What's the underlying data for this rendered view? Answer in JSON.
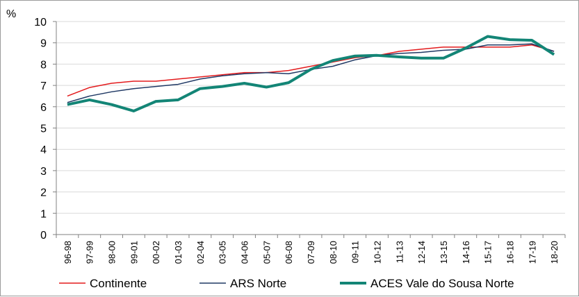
{
  "chart_data": {
    "type": "line",
    "unit_label": "%",
    "ylim": [
      0,
      10
    ],
    "yticks": [
      0,
      1,
      2,
      3,
      4,
      5,
      6,
      7,
      8,
      9,
      10
    ],
    "ytick_labels": [
      "0",
      "1",
      "2",
      "3",
      "4",
      "5",
      "6",
      "7",
      "8",
      "9",
      "10"
    ],
    "grid": "horizontal",
    "legend_position": "bottom",
    "categories": [
      "96-98",
      "97-99",
      "98-00",
      "99-01",
      "00-02",
      "01-03",
      "02-04",
      "03-05",
      "04-06",
      "05-07",
      "06-08",
      "07-09",
      "08-10",
      "09-11",
      "10-12",
      "11-13",
      "12-14",
      "13-15",
      "14-16",
      "15-17",
      "16-18",
      "17-19",
      "18-20"
    ],
    "series": [
      {
        "name": "Continente",
        "color": "#e31a1c",
        "values": [
          6.5,
          6.9,
          7.1,
          7.2,
          7.2,
          7.3,
          7.4,
          7.5,
          7.6,
          7.6,
          7.7,
          7.9,
          8.1,
          8.3,
          8.4,
          8.6,
          8.7,
          8.8,
          8.8,
          8.8,
          8.8,
          8.9,
          8.6
        ]
      },
      {
        "name": "ARS Norte",
        "color": "#1f3864",
        "values": [
          6.2,
          6.5,
          6.7,
          6.85,
          6.95,
          7.05,
          7.3,
          7.45,
          7.55,
          7.6,
          7.55,
          7.75,
          7.9,
          8.2,
          8.4,
          8.5,
          8.55,
          8.65,
          8.7,
          8.9,
          8.9,
          8.95,
          8.6
        ]
      },
      {
        "name": "ACES Vale do Sousa Norte",
        "color": "#138576",
        "values": [
          6.1,
          6.32,
          6.1,
          5.8,
          6.25,
          6.32,
          6.85,
          6.95,
          7.1,
          6.92,
          7.13,
          7.75,
          8.17,
          8.38,
          8.41,
          8.34,
          8.28,
          8.28,
          8.75,
          9.3,
          9.15,
          9.12,
          8.45
        ]
      }
    ]
  }
}
